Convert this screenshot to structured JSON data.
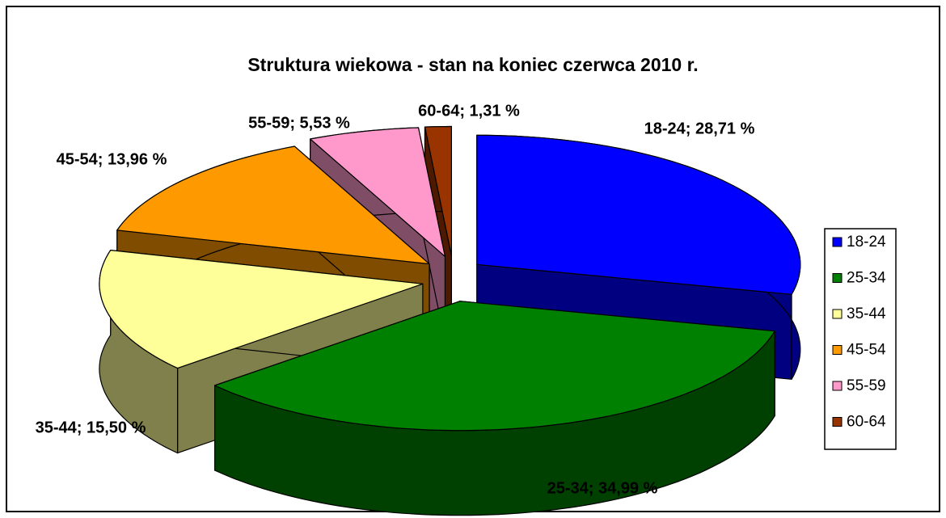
{
  "chart_data": {
    "type": "pie3d",
    "title": "Struktura wiekowa - stan na koniec czerwca 2010 r.",
    "categories": [
      "18-24",
      "25-34",
      "35-44",
      "45-54",
      "55-59",
      "60-64"
    ],
    "values": [
      28.71,
      34.99,
      15.5,
      13.96,
      5.53,
      1.31
    ],
    "value_labels": [
      "18-24; 28,71 %",
      "25-34; 34,99 %",
      "35-44; 15,50 %",
      "45-54; 13,96 %",
      "55-59; 5,53 %",
      "60-64; 1,31 %"
    ],
    "colors": [
      "#0000FF",
      "#008000",
      "#FFFF99",
      "#FF9900",
      "#FF99CC",
      "#993300"
    ],
    "legend": "right"
  }
}
